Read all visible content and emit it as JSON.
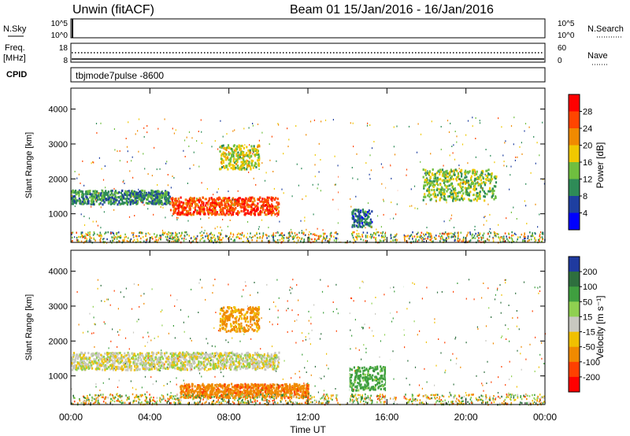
{
  "header": {
    "radar_title": "Unwin (fitACF)",
    "beam_title": "Beam 01  15/Jan/2016 - 16/Jan/2016"
  },
  "top_panels": {
    "nsky_label": "N.Sky",
    "nsky_ticks": [
      "10^5",
      "10^0"
    ],
    "nsearch_label": "N.Search",
    "nsearch_ticks": [
      "10^5",
      "10^0"
    ],
    "freq_label": "Freq.",
    "freq_unit": "[MHz]",
    "freq_ticks": [
      "18",
      "8"
    ],
    "nave_label": "Nave",
    "nave_ticks": [
      "60",
      "0"
    ],
    "cpid_label": "CPID",
    "cpid_value": "tbjmode7pulse -8600"
  },
  "chart_data": [
    {
      "type": "heatmap",
      "name": "power",
      "ylabel": "Slant Range [km]",
      "yticks": [
        "4000",
        "3000",
        "2000",
        "1000"
      ],
      "ylim": [
        180,
        4600
      ],
      "colorbar_label": "Power [dB]",
      "colorbar_ticks": [
        "28",
        "24",
        "20",
        "16",
        "12",
        "8",
        "4"
      ],
      "colorbar_colors": [
        "#ff0000",
        "#ff4500",
        "#f08a00",
        "#f0c800",
        "#6fbf3f",
        "#2e8b57",
        "#1e3fa0",
        "#0000ff"
      ],
      "structures": [
        {
          "t0": 0.0,
          "t1": 5.0,
          "r0": 1300,
          "r1": 1700,
          "value": 10
        },
        {
          "t0": 5.0,
          "t1": 10.5,
          "r0": 1000,
          "r1": 1500,
          "value": 26
        },
        {
          "t0": 14.2,
          "t1": 15.2,
          "r0": 650,
          "r1": 1150,
          "value": 8
        },
        {
          "t0": 7.5,
          "t1": 9.5,
          "r0": 2300,
          "r1": 3000,
          "value": 16
        },
        {
          "t0": 17.8,
          "t1": 21.5,
          "r0": 1400,
          "r1": 2300,
          "value": 14
        }
      ]
    },
    {
      "type": "heatmap",
      "name": "velocity",
      "ylabel": "Slant Range [km]",
      "yticks": [
        "4000",
        "3000",
        "2000",
        "1000"
      ],
      "ylim": [
        180,
        4600
      ],
      "colorbar_label": "Velocity [m s⁻¹]",
      "colorbar_ticks": [
        "200",
        "100",
        "50",
        "15",
        "-15",
        "-50",
        "-100",
        "-200"
      ],
      "colorbar_colors": [
        "#1f3a9f",
        "#2e6f3e",
        "#3f9f3f",
        "#8fd050",
        "#c8c8c0",
        "#f0c000",
        "#f08a00",
        "#ff4000",
        "#ff0000"
      ],
      "structures": [
        {
          "t0": 0.0,
          "t1": 10.5,
          "r0": 1200,
          "r1": 1700,
          "value": 0
        },
        {
          "t0": 14.0,
          "t1": 16.0,
          "r0": 600,
          "r1": 1300,
          "value": 70
        },
        {
          "t0": 7.5,
          "t1": 9.5,
          "r0": 2300,
          "r1": 3000,
          "value": -60
        },
        {
          "t0": 5.5,
          "t1": 12.0,
          "r0": 400,
          "r1": 800,
          "value": -80
        }
      ]
    }
  ],
  "xaxis": {
    "label": "Time UT",
    "ticks": [
      "00:00",
      "04:00",
      "08:00",
      "12:00",
      "16:00",
      "20:00",
      "00:00"
    ],
    "xlim_hours": [
      0,
      24
    ]
  }
}
